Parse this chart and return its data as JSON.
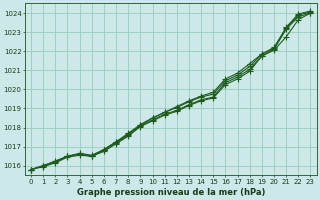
{
  "title": "Graphe pression niveau de la mer (hPa)",
  "bg_color": "#cce8e8",
  "grid_color": "#99ccbb",
  "line_color": "#1e5c1e",
  "xlim": [
    -0.5,
    23.5
  ],
  "ylim": [
    1015.5,
    1024.5
  ],
  "yticks": [
    1016,
    1017,
    1018,
    1019,
    1020,
    1021,
    1022,
    1023,
    1024
  ],
  "xticks": [
    0,
    1,
    2,
    3,
    4,
    5,
    6,
    7,
    8,
    9,
    10,
    11,
    12,
    13,
    14,
    15,
    16,
    17,
    18,
    19,
    20,
    21,
    22,
    23
  ],
  "series": [
    [
      1015.8,
      1015.95,
      1016.15,
      1016.45,
      1016.55,
      1016.5,
      1016.75,
      1017.15,
      1017.55,
      1018.05,
      1018.35,
      1018.65,
      1018.85,
      1019.15,
      1019.4,
      1019.55,
      1020.25,
      1020.55,
      1020.95,
      1021.75,
      1022.05,
      1022.75,
      1023.65,
      1024.0
    ],
    [
      1015.8,
      1016.0,
      1016.2,
      1016.5,
      1016.6,
      1016.5,
      1016.8,
      1017.2,
      1017.6,
      1018.1,
      1018.4,
      1018.7,
      1018.9,
      1019.2,
      1019.45,
      1019.6,
      1020.35,
      1020.65,
      1021.05,
      1021.75,
      1022.1,
      1023.15,
      1023.8,
      1024.0
    ],
    [
      1015.8,
      1016.0,
      1016.25,
      1016.5,
      1016.65,
      1016.55,
      1016.85,
      1017.25,
      1017.65,
      1018.15,
      1018.5,
      1018.8,
      1019.05,
      1019.35,
      1019.6,
      1019.75,
      1020.45,
      1020.75,
      1021.2,
      1021.85,
      1022.2,
      1023.2,
      1023.9,
      1024.05
    ],
    [
      1015.8,
      1016.0,
      1016.2,
      1016.5,
      1016.6,
      1016.5,
      1016.85,
      1017.25,
      1017.7,
      1018.15,
      1018.5,
      1018.8,
      1019.1,
      1019.4,
      1019.65,
      1019.85,
      1020.55,
      1020.85,
      1021.35,
      1021.85,
      1022.15,
      1023.25,
      1023.95,
      1024.1
    ]
  ]
}
